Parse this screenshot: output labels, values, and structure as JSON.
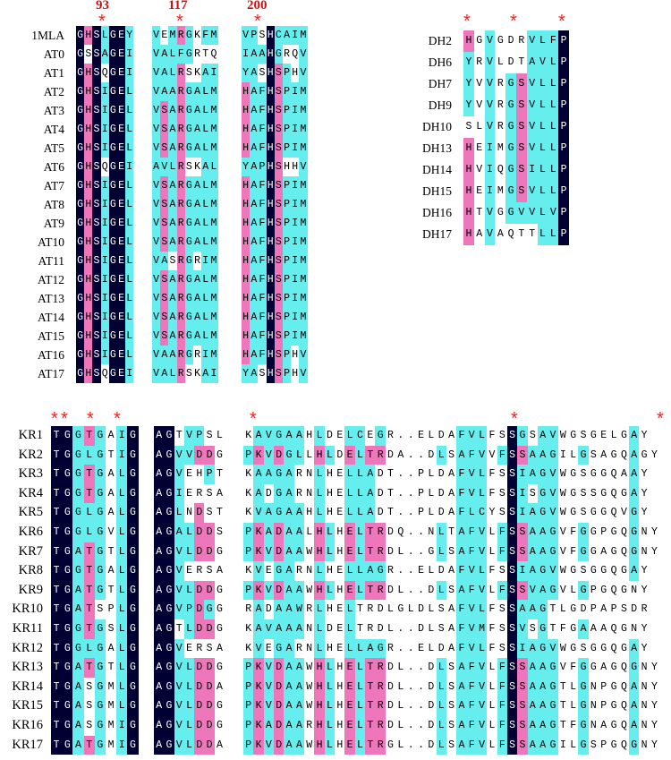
{
  "at_block": {
    "positions": [
      "93",
      "117",
      "200"
    ],
    "segments_count": 3,
    "rows": [
      {
        "name": "1MLA",
        "s": [
          "GHSLGEY",
          "VEMRGKFM",
          "VPSHCAIM"
        ]
      },
      {
        "name": "AT0",
        "s": [
          "GSSAGEI",
          "VALFGRTQ",
          "IAAHGRQV"
        ]
      },
      {
        "name": "AT1",
        "s": [
          "GHSQGEI",
          "VALRSKAI",
          "YASHSPHV"
        ]
      },
      {
        "name": "AT2",
        "s": [
          "GHSIGEL",
          "VAARGALM",
          "HAFHSPIM"
        ]
      },
      {
        "name": "AT3",
        "s": [
          "GHSIGEL",
          "VSARGALM",
          "HAFHSPIM"
        ]
      },
      {
        "name": "AT4",
        "s": [
          "GHSIGEL",
          "VSARGALM",
          "HAFHSPIM"
        ]
      },
      {
        "name": "AT5",
        "s": [
          "GHSIGEL",
          "VSARGALM",
          "HAFHSPIM"
        ]
      },
      {
        "name": "AT6",
        "s": [
          "GHSQGEI",
          "AVLRSKAL",
          "YAPHSHHV"
        ]
      },
      {
        "name": "AT7",
        "s": [
          "GHSIGEL",
          "VSARGALM",
          "HAFHSPIM"
        ]
      },
      {
        "name": "AT8",
        "s": [
          "GHSIGEL",
          "VSARGALM",
          "HAFHSPIM"
        ]
      },
      {
        "name": "AT9",
        "s": [
          "GHSIGEL",
          "VSARGALM",
          "HAFHSPIM"
        ]
      },
      {
        "name": "AT10",
        "s": [
          "GHSIGEL",
          "VSARGALM",
          "HAFHSPIM"
        ]
      },
      {
        "name": "AT11",
        "s": [
          "GHSIGEL",
          "VASRGRIM",
          "HAFHSPIM"
        ]
      },
      {
        "name": "AT12",
        "s": [
          "GHSIGEL",
          "VSARGALM",
          "HAFHSPIM"
        ]
      },
      {
        "name": "AT13",
        "s": [
          "GHSIGEL",
          "VSARGALM",
          "HAFHSPIM"
        ]
      },
      {
        "name": "AT14",
        "s": [
          "GHSIGEL",
          "VSARGALM",
          "HAFHSPIM"
        ]
      },
      {
        "name": "AT15",
        "s": [
          "GHSIGEL",
          "VSARGALM",
          "HAFHSPIM"
        ]
      },
      {
        "name": "AT16",
        "s": [
          "GHSIGEL",
          "VAARGRIM",
          "HAFHSPHV"
        ]
      },
      {
        "name": "AT17",
        "s": [
          "GHSQGEI",
          "VALRSKAI",
          "YASHSPHV"
        ]
      }
    ]
  },
  "dh_block": {
    "rows": [
      {
        "name": "DH2",
        "s": "HGVGDRVLFP"
      },
      {
        "name": "DH6",
        "s": "YRVLDTAVLP"
      },
      {
        "name": "DH7",
        "s": "YVVRGSVLLP"
      },
      {
        "name": "DH9",
        "s": "YVVRGSVLLP"
      },
      {
        "name": "DH10",
        "s": "SLVRGSVLLP"
      },
      {
        "name": "DH13",
        "s": "HEIMGSVLLP"
      },
      {
        "name": "DH14",
        "s": "HVIQGSILLP"
      },
      {
        "name": "DH15",
        "s": "HEIMGSVLLP"
      },
      {
        "name": "DH16",
        "s": "HTVGGVVLVP"
      },
      {
        "name": "DH17",
        "s": "HAVAQTTLLP"
      }
    ]
  },
  "kr_block": {
    "rows": [
      {
        "name": "KR1",
        "s": [
          "TGGTGAIG",
          "AGTVPSL",
          "KAVGAAHLDELCEGR..ELDAFVLFSSGSAVWGSGELGAY"
        ]
      },
      {
        "name": "KR2",
        "s": [
          "TGGLGTIG",
          "AGVVDDG",
          "PKVDGLLHLDELTRDA..DLSAFVVFSSAAGILGSAGQAGY"
        ]
      },
      {
        "name": "KR3",
        "s": [
          "TGGTGALG",
          "AGVEHPT",
          "KAAGARNLHELLADT..PLDAFVLFSSIAGVWGSGGQAAY"
        ]
      },
      {
        "name": "KR4",
        "s": [
          "TGGTGALG",
          "AGIERSA",
          "KADGARNLHELLADT..PLDAFVLFSSISGVWGSSGQGAY"
        ]
      },
      {
        "name": "KR5",
        "s": [
          "TGGLGALG",
          "AGLNDST",
          "KVAGAAHLHELLADT..PLDAFLCYSSIAGVWGSGGQVGY"
        ]
      },
      {
        "name": "KR6",
        "s": [
          "TGGLGVLG",
          "AGALDDS",
          "PKADAALHLHELTRDQ..NLTAFVLFSSAAGVFGGPGQGNY"
        ]
      },
      {
        "name": "KR7",
        "s": [
          "TGATGTLG",
          "AGVLDDG",
          "PKVDAAWHLHELTRDL..GLSAFVLFSSAAGVFGGAGQGNY"
        ]
      },
      {
        "name": "KR8",
        "s": [
          "TGGTGALG",
          "AGVERSA",
          "KVEGARNLHELLAGR..ELDAFVLFSSIAGVWGSGGQGAY"
        ]
      },
      {
        "name": "KR9",
        "s": [
          "TGATGTLG",
          "AGVLDDG",
          "PKVDAAWHLHELTRDL..DLSAFVLFSSVAGVLGPGQGNY"
        ]
      },
      {
        "name": "KR10",
        "s": [
          "TGATSPLG",
          "AGVPDGG",
          "RADAAWRLHELTRDLGLDLSAFVLFSSAAGTLGDPAPSDR"
        ]
      },
      {
        "name": "KR11",
        "s": [
          "TGGTGSLG",
          "AGTLDDG",
          "KAVAAANLDELTRDL..DLSAFVMFSSVSGTFGAAAQGNY"
        ]
      },
      {
        "name": "KR12",
        "s": [
          "TGGLGALG",
          "AGVERSA",
          "KVEGARNLHELLAGR..ELDAFVLFSSIAGVWGSGGQGAY"
        ]
      },
      {
        "name": "KR13",
        "s": [
          "TGATGTLG",
          "AGVLDDG",
          "PKVDAAWHLHELTRDL..DLSAFVLFSSAAGVFGGAGQGNY"
        ]
      },
      {
        "name": "KR14",
        "s": [
          "TGASGMLG",
          "AGVLDDA",
          "PKVDAAWHLHELTRDL..DLSAFVLFSSAAGTLGNPGQANY"
        ]
      },
      {
        "name": "KR15",
        "s": [
          "TGASGMLG",
          "AGVLDDG",
          "PKVDAAWHLHELTRDL..DLSAFVLFSSAAGTLGNPGQANY"
        ]
      },
      {
        "name": "KR16",
        "s": [
          "TGASGMIG",
          "AGVLDDG",
          "PKADAARHLHELTRDL..DLSAFVLFSSAAGTFGNAGQANY"
        ]
      },
      {
        "name": "KR17",
        "s": [
          "TGATGMIG",
          "AGVLDDA",
          "PKVDAAWHLHELTRGL..DLSAFVLFSSAAGILGSPGQGNY"
        ]
      }
    ]
  },
  "colors": {
    "identical": "#000033",
    "similar_cyan": "#66eeee",
    "similar_magenta": "#ee77bb",
    "star": "#ff1a1a"
  }
}
